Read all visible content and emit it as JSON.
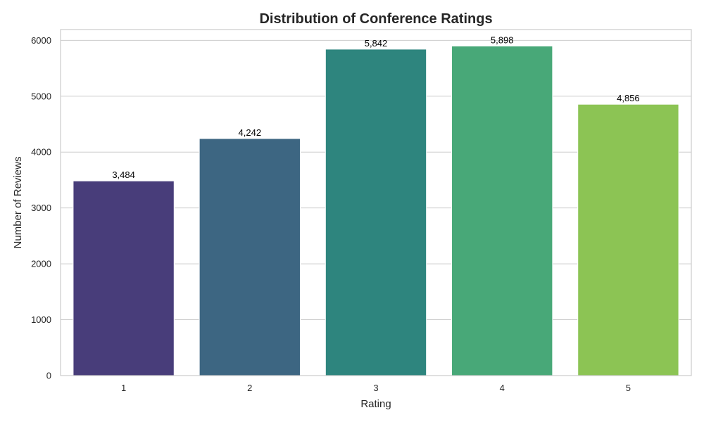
{
  "chart_data": {
    "type": "bar",
    "title": "Distribution of Conference Ratings",
    "xlabel": "Rating",
    "ylabel": "Number of Reviews",
    "categories": [
      "1",
      "2",
      "3",
      "4",
      "5"
    ],
    "values": [
      3484,
      4242,
      5842,
      5898,
      4856
    ],
    "data_labels": [
      "3,484",
      "4,242",
      "5,842",
      "5,898",
      "4,856"
    ],
    "colors": [
      "#483d7a",
      "#3d6682",
      "#2e857e",
      "#48a878",
      "#8cc454"
    ],
    "yticks": [
      0,
      1000,
      2000,
      3000,
      4000,
      5000,
      6000
    ],
    "ytick_labels": [
      "0",
      "1000",
      "2000",
      "3000",
      "4000",
      "5000",
      "6000"
    ],
    "ylim": [
      0,
      6193
    ],
    "grid": "horizontal",
    "legend": "none"
  }
}
